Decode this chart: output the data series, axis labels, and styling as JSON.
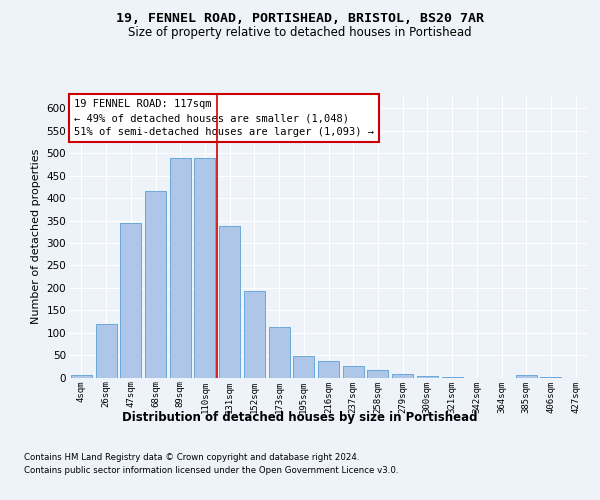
{
  "title1": "19, FENNEL ROAD, PORTISHEAD, BRISTOL, BS20 7AR",
  "title2": "Size of property relative to detached houses in Portishead",
  "xlabel": "Distribution of detached houses by size in Portishead",
  "ylabel": "Number of detached properties",
  "categories": [
    "4sqm",
    "26sqm",
    "47sqm",
    "68sqm",
    "89sqm",
    "110sqm",
    "131sqm",
    "152sqm",
    "173sqm",
    "195sqm",
    "216sqm",
    "237sqm",
    "258sqm",
    "279sqm",
    "300sqm",
    "321sqm",
    "342sqm",
    "364sqm",
    "385sqm",
    "406sqm",
    "427sqm"
  ],
  "values": [
    5,
    120,
    345,
    415,
    490,
    490,
    338,
    192,
    112,
    48,
    36,
    25,
    16,
    8,
    3,
    1,
    0,
    0,
    5,
    1,
    0
  ],
  "bar_color": "#aec6e8",
  "bar_edge_color": "#5a9fd4",
  "highlight_color": "#cc0000",
  "annotation_title": "19 FENNEL ROAD: 117sqm",
  "annotation_line1": "← 49% of detached houses are smaller (1,048)",
  "annotation_line2": "51% of semi-detached houses are larger (1,093) →",
  "annotation_box_color": "#ffffff",
  "annotation_box_edge": "#cc0000",
  "footer1": "Contains HM Land Registry data © Crown copyright and database right 2024.",
  "footer2": "Contains public sector information licensed under the Open Government Licence v3.0.",
  "ylim": [
    0,
    630
  ],
  "yticks": [
    0,
    50,
    100,
    150,
    200,
    250,
    300,
    350,
    400,
    450,
    500,
    550,
    600
  ],
  "background_color": "#eef2f9",
  "grid_color": "#ffffff"
}
